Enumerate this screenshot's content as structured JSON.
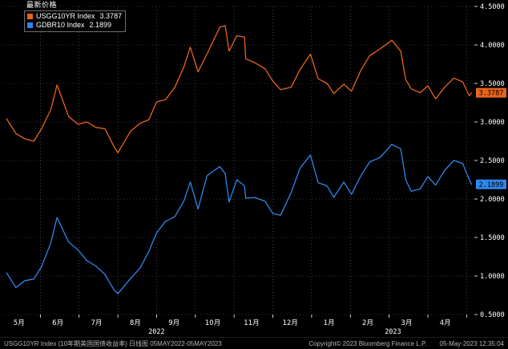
{
  "colors": {
    "background": "#000000",
    "grid": "#6a6a6a",
    "axis_text": "#ffffff",
    "badge_text": "#000000",
    "series_orange": "#e8641b",
    "series_blue": "#2f86eb"
  },
  "legend": {
    "title": "最新价格",
    "items": [
      {
        "swatch": "#e8641b",
        "label": "USGG10YR Index",
        "value": "3.3787"
      },
      {
        "swatch": "#2f86eb",
        "label": "GDBR10 Index",
        "value": "2.1899"
      }
    ]
  },
  "footer": {
    "left": "USGG10YR Index (10年期美国国债收益率) 日线图 05MAY2022-05MAY2023",
    "copyright": "Copyright© 2023 Bloomberg Finance L.P.",
    "timestamp": "05-May-2023 12:35:04"
  },
  "chart_data": {
    "type": "line",
    "title": "最新价格",
    "x_unit": "months since 2022-05-01 (daily line chart, 05MAY2022-05MAY2023)",
    "ylim": [
      0.5,
      4.5
    ],
    "grid": "dotted",
    "legend_position": "top-left",
    "y_ticks": [
      "4.5000",
      "4.0000",
      "3.5000",
      "3.0000",
      "2.5000",
      "2.0000",
      "1.5000",
      "1.0000",
      "0.5000"
    ],
    "x_tick_labels": [
      "5月",
      "6月",
      "7月",
      "8月",
      "9月",
      "10月",
      "11月",
      "12月",
      "1月",
      "2月",
      "3月",
      "4月"
    ],
    "year_labels": [
      {
        "label": "2022",
        "center": 4.0
      },
      {
        "label": "2023",
        "center": 10.1
      }
    ],
    "x": [
      0.13,
      0.37,
      0.6,
      0.83,
      1.03,
      1.27,
      1.43,
      1.73,
      1.97,
      2.2,
      2.43,
      2.67,
      2.9,
      3.0,
      3.33,
      3.57,
      3.8,
      4.0,
      4.23,
      4.47,
      4.7,
      4.87,
      5.07,
      5.3,
      5.43,
      5.63,
      5.77,
      5.87,
      6.07,
      6.27,
      6.3,
      6.53,
      6.8,
      7.0,
      7.2,
      7.47,
      7.7,
      7.97,
      8.17,
      8.4,
      8.57,
      8.83,
      9.03,
      9.27,
      9.5,
      9.77,
      10.07,
      10.3,
      10.43,
      10.57,
      10.8,
      11.0,
      11.2,
      11.43,
      11.67,
      11.9,
      12.07,
      12.13
    ],
    "series": [
      {
        "name": "USGG10YR Index",
        "color": "#e8641b",
        "last_price_label": "3.3787",
        "values": [
          3.04,
          2.85,
          2.78,
          2.75,
          2.91,
          3.16,
          3.48,
          3.07,
          2.97,
          3.0,
          2.93,
          2.91,
          2.68,
          2.6,
          2.88,
          2.98,
          3.03,
          3.26,
          3.29,
          3.45,
          3.71,
          3.97,
          3.65,
          3.88,
          4.02,
          4.23,
          4.25,
          3.92,
          4.12,
          4.1,
          3.82,
          3.77,
          3.69,
          3.53,
          3.42,
          3.45,
          3.68,
          3.88,
          3.56,
          3.5,
          3.37,
          3.49,
          3.4,
          3.67,
          3.86,
          3.95,
          4.06,
          3.92,
          3.55,
          3.43,
          3.38,
          3.47,
          3.3,
          3.45,
          3.57,
          3.52,
          3.34,
          3.3787
        ]
      },
      {
        "name": "GDBR10 Index",
        "color": "#2f86eb",
        "last_price_label": "2.1899",
        "values": [
          1.04,
          0.85,
          0.94,
          0.96,
          1.12,
          1.43,
          1.76,
          1.44,
          1.34,
          1.2,
          1.13,
          1.02,
          0.82,
          0.77,
          0.97,
          1.1,
          1.32,
          1.56,
          1.71,
          1.77,
          1.97,
          2.22,
          1.87,
          2.3,
          2.35,
          2.42,
          2.33,
          1.96,
          2.25,
          2.17,
          2.01,
          2.02,
          1.97,
          1.81,
          1.79,
          2.08,
          2.4,
          2.57,
          2.21,
          2.17,
          2.02,
          2.22,
          2.06,
          2.3,
          2.48,
          2.54,
          2.71,
          2.65,
          2.25,
          2.1,
          2.13,
          2.29,
          2.18,
          2.37,
          2.5,
          2.46,
          2.25,
          2.1899
        ]
      }
    ]
  }
}
